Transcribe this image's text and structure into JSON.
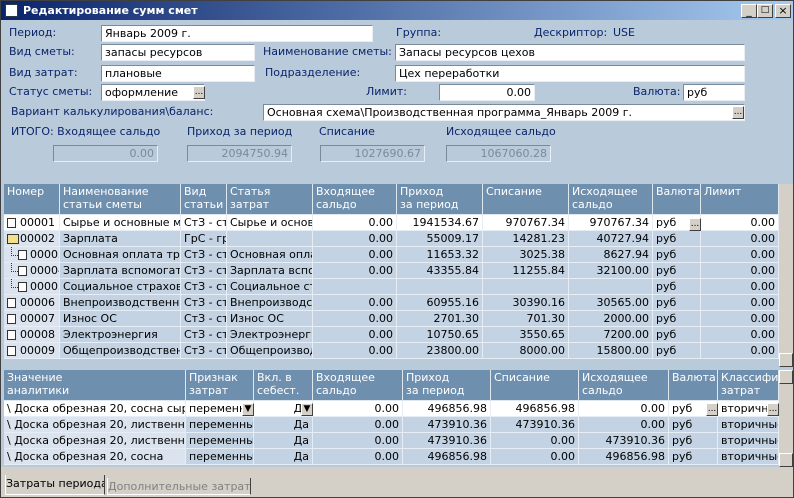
{
  "window": {
    "title": "Редактирование сумм смет"
  },
  "form": {
    "period_label": "Период:",
    "period": "Январь 2009 г.",
    "group_label": "Группа:",
    "descriptor_label": "Дескриптор:",
    "descriptor": "USE",
    "kind_label": "Вид сметы:",
    "kind": "запасы ресурсов",
    "name_label": "Наименование сметы:",
    "name": "Запасы ресурсов цехов",
    "cost_type_label": "Вид затрат:",
    "cost_type": "плановые",
    "division_label": "Подразделение:",
    "division": "Цех переработки",
    "status_label": "Статус сметы:",
    "status": "оформление",
    "limit_label": "Лимит:",
    "limit": "0.00",
    "currency_label": "Валюта:",
    "currency": "руб",
    "variant_label": "Вариант калькулирования\\баланс:",
    "variant": "Основная схема\\Производственная программа_Январь 2009 г."
  },
  "totals": {
    "labels": [
      "ИТОГО: Входящее сальдо",
      "Приход за период",
      "Списание",
      "Исходящее сальдо"
    ],
    "values": [
      "0.00",
      "2094750.94",
      "1027690.67",
      "1067060.28"
    ]
  },
  "table": {
    "columns": [
      "Номер",
      "Наименование\nстатьи сметы",
      "Вид\nстатьи с",
      "Статья\nзатрат",
      "Входящее\nсальдо",
      "Приход\nза период",
      "Списание",
      "Исходящее\nсальдо",
      "Валюта",
      "Лимит"
    ],
    "rows": [
      [
        "00001",
        "Сырье и основные мат",
        "СтЗ - ст",
        "Сырье и основн",
        "0.00",
        "1941534.67",
        "970767.34",
        "970767.34",
        "руб",
        "0.00"
      ],
      [
        "00002",
        "Зарплата",
        "ГрС - гру",
        "",
        "0.00",
        "55009.17",
        "14281.23",
        "40727.94",
        "руб",
        "0.00"
      ],
      [
        "00003",
        "Основная оплата труд",
        "СтЗ - ст",
        "Основная оплат",
        "0.00",
        "11653.32",
        "3025.38",
        "8627.94",
        "руб",
        "0.00"
      ],
      [
        "00004",
        "Зарплата вспомогател",
        "СтЗ - ст",
        "Зарплата вспом",
        "0.00",
        "43355.84",
        "11255.84",
        "32100.00",
        "руб",
        "0.00"
      ],
      [
        "00005",
        "Социальное страхован",
        "СтЗ - ст",
        "Социальное стр",
        "",
        "",
        "",
        "",
        "руб",
        "0.00"
      ],
      [
        "00006",
        "Внепроизводственные",
        "СтЗ - ст",
        "Внепроизводств",
        "0.00",
        "60955.16",
        "30390.16",
        "30565.00",
        "руб",
        "0.00"
      ],
      [
        "00007",
        "Износ ОС",
        "СтЗ - ст",
        "Износ ОС",
        "0.00",
        "2701.30",
        "701.30",
        "2000.00",
        "руб",
        "0.00"
      ],
      [
        "00008",
        "Электроэнергия",
        "СтЗ - ст",
        "Электроэнергия",
        "0.00",
        "10750.65",
        "3550.65",
        "7200.00",
        "руб",
        "0.00"
      ],
      [
        "00009",
        "Общепроизводственны",
        "СтЗ - ст",
        "Общепроизводств",
        "0.00",
        "23800.00",
        "8000.00",
        "15800.00",
        "руб",
        "0.00"
      ]
    ]
  },
  "analytics": {
    "columns": [
      "Значение\nаналитики",
      "Признак\nзатрат",
      "Вкл. в\nсебест.",
      "Входящее\nсальдо",
      "Приход\nза период",
      "Списание",
      "Исходящее\nсальдо",
      "Валюта",
      "Классифи\nзатрат"
    ],
    "rows": [
      [
        "\\ Доска обрезная 20, сосна сыре",
        "переменные",
        "Да",
        "0.00",
        "496856.98",
        "496856.98",
        "0.00",
        "руб",
        "вторичн"
      ],
      [
        "\\ Доска обрезная 20, лиственница",
        "переменные",
        "Да",
        "0.00",
        "473910.36",
        "473910.36",
        "0.00",
        "руб",
        "вторичные"
      ],
      [
        "\\ Доска обрезная 20, лиственница",
        "переменные",
        "Да",
        "0.00",
        "473910.36",
        "0.00",
        "473910.36",
        "руб",
        "вторичные"
      ],
      [
        "\\ Доска обрезная 20, сосна",
        "переменные",
        "Да",
        "0.00",
        "496856.98",
        "0.00",
        "496856.98",
        "руб",
        "вторичные"
      ]
    ]
  },
  "tabs": [
    "Затраты периода",
    "Дополнительные затраты"
  ]
}
